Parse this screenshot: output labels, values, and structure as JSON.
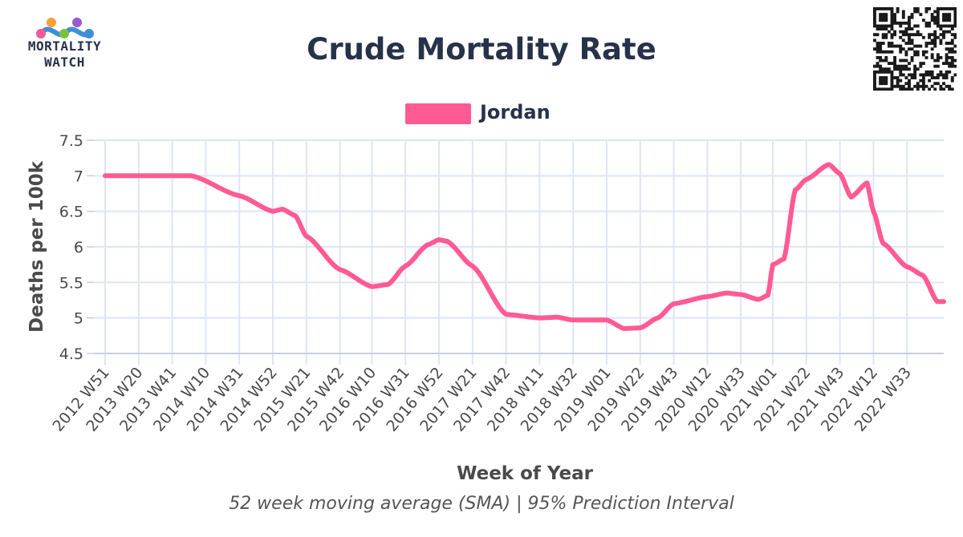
{
  "header": {
    "logo_line1": "MORTALITY",
    "logo_line2": "WATCH",
    "title": "Crude Mortality Rate"
  },
  "legend": {
    "label": "Jordan",
    "color": "#ff5a94"
  },
  "footnote": "52 week moving average (SMA) | 95% Prediction Interval",
  "icons": [
    "mortality-watch-logo-icon",
    "qr-code-icon"
  ],
  "chart_data": {
    "type": "line",
    "title": "Crude Mortality Rate",
    "xlabel": "Week of Year",
    "ylabel": "Deaths per 100k",
    "ylim": [
      4.5,
      7.5
    ],
    "y_ticks": [
      "4.5",
      "5",
      "5.5",
      "6",
      "6.5",
      "7",
      "7.5"
    ],
    "x_tick_labels": [
      "2012 W51",
      "2013 W20",
      "2013 W41",
      "2014 W10",
      "2014 W31",
      "2014 W52",
      "2015 W21",
      "2015 W42",
      "2016 W10",
      "2016 W31",
      "2016 W52",
      "2017 W21",
      "2017 W42",
      "2018 W11",
      "2018 W32",
      "2019 W01",
      "2019 W22",
      "2019 W43",
      "2020 W12",
      "2020 W33",
      "2021 W01",
      "2021 W22",
      "2021 W43",
      "2022 W12",
      "2022 W33"
    ],
    "grid": true,
    "legend_position": "top-center",
    "series": [
      {
        "name": "Jordan",
        "color": "#ff5a94",
        "anchors": [
          [
            "2012 W51",
            7.0
          ],
          [
            "2014 W01",
            7.0
          ],
          [
            "2014 W31",
            6.72
          ],
          [
            "2014 W52",
            6.5
          ],
          [
            "2015 W06",
            6.53
          ],
          [
            "2015 W14",
            6.44
          ],
          [
            "2015 W21",
            6.15
          ],
          [
            "2015 W42",
            5.68
          ],
          [
            "2016 W10",
            5.44
          ],
          [
            "2016 W20",
            5.47
          ],
          [
            "2016 W31",
            5.73
          ],
          [
            "2016 W45",
            6.03
          ],
          [
            "2016 W52",
            6.1
          ],
          [
            "2017 W05",
            6.08
          ],
          [
            "2017 W21",
            5.73
          ],
          [
            "2017 W42",
            5.05
          ],
          [
            "2018 W11",
            5.0
          ],
          [
            "2018 W22",
            5.01
          ],
          [
            "2018 W32",
            4.97
          ],
          [
            "2019 W01",
            4.97
          ],
          [
            "2019 W12",
            4.85
          ],
          [
            "2019 W22",
            4.86
          ],
          [
            "2019 W33",
            5.0
          ],
          [
            "2019 W43",
            5.2
          ],
          [
            "2020 W12",
            5.3
          ],
          [
            "2020 W24",
            5.35
          ],
          [
            "2020 W33",
            5.33
          ],
          [
            "2020 W44",
            5.26
          ],
          [
            "2020 W50",
            5.32
          ],
          [
            "2021 W01",
            5.75
          ],
          [
            "2021 W08",
            5.83
          ],
          [
            "2021 W15",
            6.8
          ],
          [
            "2021 W22",
            6.95
          ],
          [
            "2021 W36",
            7.16
          ],
          [
            "2021 W43",
            7.03
          ],
          [
            "2021 W50",
            6.7
          ],
          [
            "2022 W08",
            6.9
          ],
          [
            "2022 W12",
            6.5
          ],
          [
            "2022 W18",
            6.05
          ],
          [
            "2022 W33",
            5.72
          ],
          [
            "2022 W43",
            5.6
          ],
          [
            "2022 W52",
            5.23
          ]
        ]
      }
    ]
  }
}
